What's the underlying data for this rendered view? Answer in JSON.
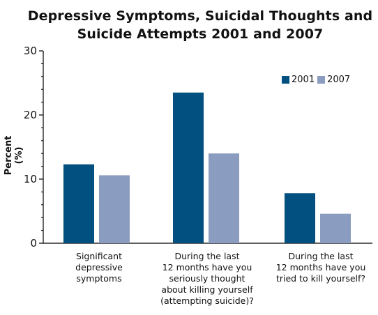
{
  "chart_data": {
    "type": "bar",
    "title": [
      "Depressive Symptoms, Suicidal Thoughts and",
      "Suicide Attempts 2001 and 2007"
    ],
    "xlabel": "",
    "ylabel": "Percent (%)",
    "ylim": [
      0,
      30
    ],
    "yticks": [
      "0",
      "10",
      "20",
      "30"
    ],
    "grid": false,
    "legend_position": "top-right",
    "categories": [
      "Significant\ndepressive\nsymptoms",
      "During the last\n12 months have you\nseriously thought\nabout killing yourself\n(attempting suicide)?",
      "During the last\n12 months have you\ntried to kill yourself?"
    ],
    "series": [
      {
        "name": "2001",
        "color": "#02507F",
        "values": [
          12.3,
          23.5,
          7.8
        ]
      },
      {
        "name": "2007",
        "color": "#8A9CC0",
        "values": [
          10.6,
          14.0,
          4.6
        ]
      }
    ]
  }
}
